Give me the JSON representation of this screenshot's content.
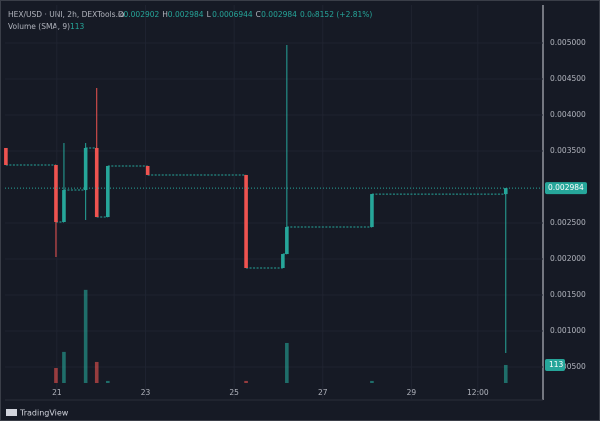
{
  "chart_data": {
    "type": "candlestick",
    "title": "HEX/USD · UNI, 2h, DEXTools.io",
    "ohlc_letters": [
      "O",
      "H",
      "L",
      "C"
    ],
    "change": "0.0₀8152 (+2.81%)",
    "volume_title": "Volume (SMA, 9)",
    "brand": "TradingView",
    "x": [
      19.85,
      20.98,
      21.16,
      21.65,
      21.9,
      22.15,
      23.05,
      25.27,
      26.1,
      26.19,
      28.11,
      31.13
    ],
    "open": [
      0.003542,
      0.003306,
      0.002514,
      0.002958,
      0.003542,
      0.002583,
      0.003292,
      0.003167,
      0.001875,
      0.002069,
      0.002444,
      0.002902
    ],
    "high": [
      0.003542,
      0.003306,
      0.003611,
      0.003611,
      0.004375,
      0.003292,
      0.003292,
      0.003167,
      0.002069,
      0.004972,
      0.002902,
      0.002984
    ],
    "low": [
      0.003306,
      0.002028,
      0.002514,
      0.002542,
      0.002583,
      0.002583,
      0.003167,
      0.001875,
      0.001875,
      0.002069,
      0.002444,
      0.0006944
    ],
    "close": [
      0.003306,
      0.002514,
      0.002958,
      0.003542,
      0.002583,
      0.003292,
      0.003167,
      0.001875,
      0.002069,
      0.002444,
      0.002902,
      0.002984
    ],
    "volume": [
      0,
      94,
      195,
      584,
      132,
      13,
      0,
      13,
      0,
      251,
      13,
      113
    ],
    "up_color": "#26a69a",
    "down_color": "#ef5350",
    "xlim": [
      19.83,
      31.97
    ],
    "xticks": [
      21,
      23,
      25,
      27,
      29,
      {
        "value": 30.5,
        "label": "12:00"
      }
    ],
    "ylim": [
      4.17e-05,
      0.005528
    ],
    "yticks": [
      {
        "value": 0.005,
        "label": "0.005000"
      },
      {
        "value": 0.0045,
        "label": "0.004500"
      },
      {
        "value": 0.004,
        "label": "0.004000"
      },
      {
        "value": 0.0035,
        "label": "0.003500"
      },
      {
        "value": 0.0025,
        "label": "0.002500"
      },
      {
        "value": 0.002,
        "label": "0.002000"
      },
      {
        "value": 0.0015,
        "label": "0.001500"
      },
      {
        "value": 0.001,
        "label": "0.001000"
      },
      {
        "value": 0.0005,
        "label": "0.000500"
      }
    ],
    "y2lim": [
      0,
      2370
    ],
    "grid": true
  }
}
